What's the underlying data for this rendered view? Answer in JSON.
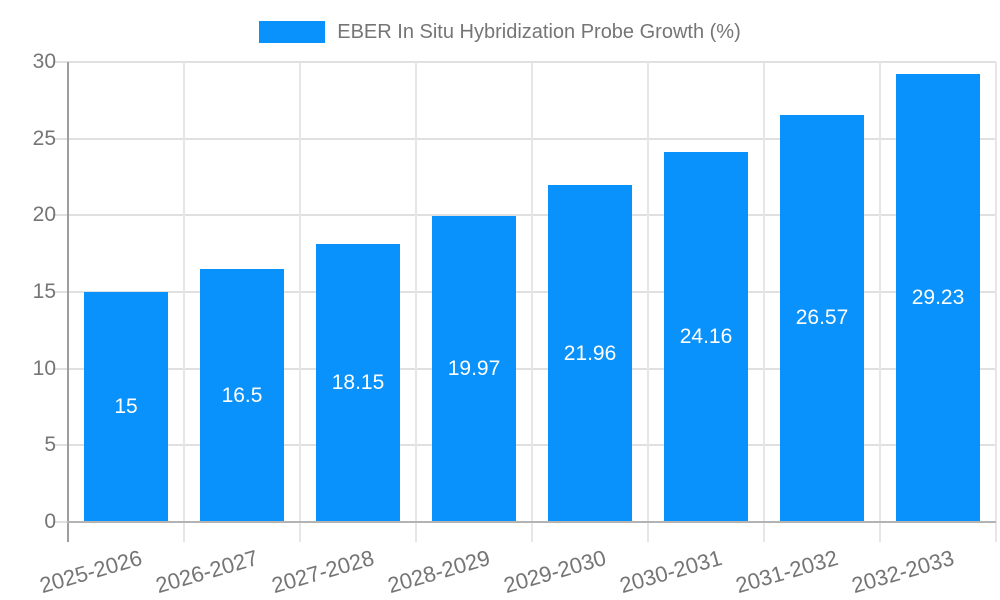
{
  "chart_data": {
    "type": "bar",
    "title": "EBER In Situ Hybridization Probe Growth (%)",
    "categories": [
      "2025-2026",
      "2026-2027",
      "2027-2028",
      "2028-2029",
      "2029-2030",
      "2030-2031",
      "2031-2032",
      "2032-2033"
    ],
    "values": [
      15,
      16.5,
      18.15,
      19.97,
      21.96,
      24.16,
      26.57,
      29.23
    ],
    "bar_labels": [
      "15",
      "16.5",
      "18.15",
      "19.97",
      "21.96",
      "24.16",
      "26.57",
      "29.23"
    ],
    "xlabel": "",
    "ylabel": "",
    "ylim": [
      0,
      30
    ],
    "yticks": [
      0,
      5,
      10,
      15,
      20,
      25,
      30
    ],
    "grid": "both",
    "legend_position": "top-center",
    "colors": {
      "bar": "#0a92fc",
      "bar_label_text": "#ffffff",
      "axis_text": "#757575",
      "legend_text": "#757575",
      "grid_horizontal": "#e0e0e0",
      "grid_vertical": "#e6e6e6",
      "y_axis_line": "#9e9e9e",
      "x_axis_line": "#b3b3b3",
      "background": "#ffffff"
    }
  }
}
